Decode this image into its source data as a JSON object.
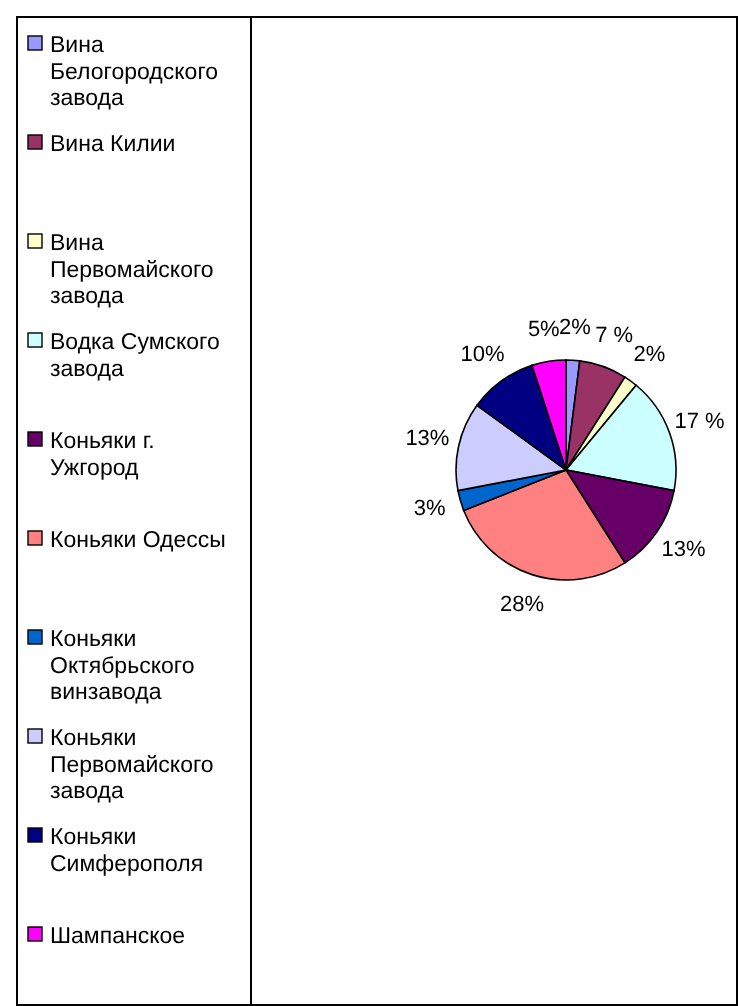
{
  "chart_data": {
    "type": "pie",
    "legend": "left",
    "categories": [
      "Вина Белогородского завода",
      "Вина Килии",
      "Вина Первомайского завода",
      "Водка Сумского завода",
      "Коньяки г. Ужгород",
      "Коньяки Одессы",
      "Коньяки Октябрьского винзавода",
      "Коньяки Первомайского завода",
      "Коньяки Симферополя",
      "Шампанское"
    ],
    "values": [
      2,
      7,
      2,
      17,
      13,
      28,
      3,
      13,
      10,
      5
    ],
    "value_labels": [
      "2%",
      "7 %",
      "2%",
      "17 %",
      "13%",
      "28%",
      "3%",
      "13%",
      "10%",
      "5%"
    ],
    "colors": [
      "#9999ff",
      "#993366",
      "#ffffcc",
      "#ccffff",
      "#660066",
      "#ff8080",
      "#0066cc",
      "#ccccff",
      "#000080",
      "#ff00ff"
    ]
  }
}
